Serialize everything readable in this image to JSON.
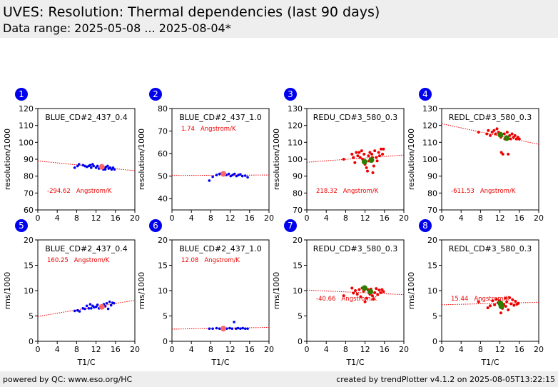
{
  "header": {
    "title": "UVES: Resolution: Thermal dependencies (last 90 days)",
    "subtitle": "Data range: 2025-05-08 ... 2025-08-04*"
  },
  "footer": {
    "left": "powered by QC: www.eso.org/HC",
    "right": "created by trendPlotter v4.1.2 on 2025-08-05T13:22:15"
  },
  "colors": {
    "badge": "#0000ee",
    "blue_points": "#0000ee",
    "red_points": "#ee0000",
    "mean_blue": "#ff6666",
    "mean_red": "#2e7d00",
    "fit": "#ee0000",
    "slope_text": "#ee0000"
  },
  "chart_data": [
    {
      "type": "scatter",
      "id": "1",
      "label": "BLUE_CD#2_437_0.4",
      "ylabel": "resolution/1000",
      "xlabel": "",
      "xlim": [
        0,
        20
      ],
      "ylim": [
        60,
        120
      ],
      "xticks": [
        0,
        4,
        8,
        12,
        16,
        20
      ],
      "yticks": [
        60,
        70,
        80,
        90,
        100,
        110,
        120
      ],
      "slope": "-294.62",
      "unit": "Angstrom/K",
      "point_color": "blue",
      "fit": [
        [
          0,
          89
        ],
        [
          20,
          83.2
        ]
      ],
      "mean": [
        13.2,
        85.5
      ],
      "points": [
        [
          7.6,
          85
        ],
        [
          8.2,
          86
        ],
        [
          8.5,
          87
        ],
        [
          9.3,
          86.5
        ],
        [
          9.7,
          86
        ],
        [
          10.1,
          85.5
        ],
        [
          10.5,
          86
        ],
        [
          10.8,
          86.5
        ],
        [
          11.0,
          85
        ],
        [
          11.3,
          87
        ],
        [
          11.5,
          86
        ],
        [
          12.0,
          85
        ],
        [
          12.3,
          86
        ],
        [
          12.6,
          84.5
        ],
        [
          13.0,
          86
        ],
        [
          13.2,
          85
        ],
        [
          13.5,
          84
        ],
        [
          13.7,
          85
        ],
        [
          13.9,
          84
        ],
        [
          14.1,
          85.5
        ],
        [
          14.4,
          86
        ],
        [
          14.6,
          84.5
        ],
        [
          14.9,
          85
        ],
        [
          15.2,
          84
        ],
        [
          15.5,
          85
        ],
        [
          15.8,
          84
        ]
      ]
    },
    {
      "type": "scatter",
      "id": "2",
      "label": "BLUE_CD#2_437_1.0",
      "ylabel": "resolution/1000",
      "xlabel": "",
      "xlim": [
        0,
        20
      ],
      "ylim": [
        35,
        80
      ],
      "xticks": [
        0,
        4,
        8,
        12,
        16,
        20
      ],
      "yticks": [
        40,
        50,
        60,
        70,
        80
      ],
      "slope": "1.74",
      "unit": "Angstrom/K",
      "point_color": "blue",
      "fit": [
        [
          0,
          50.3
        ],
        [
          20,
          50.5
        ]
      ],
      "mean": [
        10.6,
        51.0
      ],
      "points": [
        [
          7.7,
          48
        ],
        [
          8.4,
          49.7
        ],
        [
          9.2,
          50.5
        ],
        [
          9.8,
          51
        ],
        [
          10.2,
          51.2
        ],
        [
          10.5,
          50.8
        ],
        [
          10.8,
          51.5
        ],
        [
          11.2,
          50.5
        ],
        [
          11.7,
          51
        ],
        [
          12.1,
          50
        ],
        [
          12.5,
          50.5
        ],
        [
          12.9,
          51
        ],
        [
          13.3,
          50
        ],
        [
          13.7,
          50.5
        ],
        [
          14.1,
          50.8
        ],
        [
          14.5,
          50
        ],
        [
          15.1,
          50.2
        ],
        [
          15.6,
          49.5
        ]
      ]
    },
    {
      "type": "scatter",
      "id": "3",
      "label": "REDU_CD#3_580_0.3",
      "ylabel": "resolution/1000",
      "xlabel": "",
      "xlim": [
        0,
        20
      ],
      "ylim": [
        70,
        130
      ],
      "xticks": [
        0,
        4,
        8,
        12,
        16,
        20
      ],
      "yticks": [
        70,
        80,
        90,
        100,
        110,
        120,
        130
      ],
      "slope": "218.32",
      "unit": "Angstrom/K",
      "point_color": "red",
      "fit": [
        [
          0,
          98.2
        ],
        [
          20,
          102.5
        ]
      ],
      "mean": [
        [
          11.9,
          98.5
        ],
        [
          13.3,
          99.5
        ]
      ],
      "points": [
        [
          7.6,
          100
        ],
        [
          9.3,
          103
        ],
        [
          9.6,
          101
        ],
        [
          9.9,
          98
        ],
        [
          10.2,
          104
        ],
        [
          10.5,
          102
        ],
        [
          10.8,
          104
        ],
        [
          11.0,
          101
        ],
        [
          11.3,
          105
        ],
        [
          11.5,
          100
        ],
        [
          11.8,
          103
        ],
        [
          12.0,
          97
        ],
        [
          12.3,
          95
        ],
        [
          12.5,
          93
        ],
        [
          12.7,
          102
        ],
        [
          13.0,
          104
        ],
        [
          13.2,
          100
        ],
        [
          13.4,
          103
        ],
        [
          13.6,
          92
        ],
        [
          13.8,
          96
        ],
        [
          14.0,
          105
        ],
        [
          14.3,
          101
        ],
        [
          14.5,
          99
        ],
        [
          14.8,
          104
        ],
        [
          15.0,
          102
        ],
        [
          15.3,
          106
        ],
        [
          15.6,
          103
        ],
        [
          15.8,
          106
        ],
        [
          12.8,
          99
        ],
        [
          13.5,
          101
        ]
      ]
    },
    {
      "type": "scatter",
      "id": "4",
      "label": "REDL_CD#3_580_0.3",
      "ylabel": "resolution/1000",
      "xlabel": "",
      "xlim": [
        0,
        20
      ],
      "ylim": [
        70,
        130
      ],
      "xticks": [
        0,
        4,
        8,
        12,
        16,
        20
      ],
      "yticks": [
        70,
        80,
        90,
        100,
        110,
        120,
        130
      ],
      "slope": "-611.53",
      "unit": "Angstrom/K",
      "point_color": "red",
      "fit": [
        [
          0,
          121
        ],
        [
          20,
          108.8
        ]
      ],
      "mean": [
        [
          12.1,
          114.5
        ],
        [
          13.4,
          112.5
        ]
      ],
      "points": [
        [
          7.6,
          116
        ],
        [
          9.3,
          115
        ],
        [
          9.6,
          117
        ],
        [
          10.0,
          114
        ],
        [
          10.4,
          116
        ],
        [
          10.8,
          117
        ],
        [
          11.1,
          115
        ],
        [
          11.4,
          118
        ],
        [
          11.7,
          116
        ],
        [
          12.0,
          115
        ],
        [
          12.3,
          104
        ],
        [
          12.6,
          103
        ],
        [
          12.9,
          115
        ],
        [
          13.2,
          113
        ],
        [
          13.5,
          116
        ],
        [
          13.7,
          103
        ],
        [
          14.0,
          114
        ],
        [
          14.2,
          112
        ],
        [
          14.5,
          115
        ],
        [
          14.8,
          113
        ],
        [
          15.1,
          114
        ],
        [
          15.4,
          112
        ],
        [
          15.7,
          113
        ],
        [
          16.0,
          112
        ],
        [
          13.0,
          112
        ],
        [
          12.2,
          113
        ]
      ]
    },
    {
      "type": "scatter",
      "id": "5",
      "label": "BLUE_CD#2_437_0.4",
      "ylabel": "rms/1000",
      "xlabel": "T1/C",
      "xlim": [
        0,
        20
      ],
      "ylim": [
        0,
        20
      ],
      "xticks": [
        0,
        4,
        8,
        12,
        16,
        20
      ],
      "yticks": [
        0,
        5,
        10,
        15,
        20
      ],
      "slope": "160.25",
      "unit": "Angstrom/K",
      "point_color": "blue",
      "fit": [
        [
          0,
          4.9
        ],
        [
          20,
          8.1
        ]
      ],
      "mean": [
        13.2,
        6.8
      ],
      "points": [
        [
          7.6,
          6
        ],
        [
          8.2,
          6.1
        ],
        [
          8.6,
          5.9
        ],
        [
          9.3,
          6.5
        ],
        [
          9.7,
          6.4
        ],
        [
          10.1,
          7
        ],
        [
          10.5,
          6.5
        ],
        [
          10.8,
          7.3
        ],
        [
          11.0,
          6.5
        ],
        [
          11.3,
          7
        ],
        [
          11.6,
          6.7
        ],
        [
          12.0,
          6.8
        ],
        [
          12.3,
          7.2
        ],
        [
          12.6,
          6.5
        ],
        [
          13.0,
          7
        ],
        [
          13.3,
          6.6
        ],
        [
          13.6,
          7.3
        ],
        [
          13.9,
          6.9
        ],
        [
          14.2,
          7.5
        ],
        [
          14.5,
          6.4
        ],
        [
          14.8,
          7.8
        ],
        [
          15.1,
          7.1
        ],
        [
          15.4,
          7.6
        ],
        [
          15.7,
          7.5
        ]
      ]
    },
    {
      "type": "scatter",
      "id": "6",
      "label": "BLUE_CD#2_437_1.0",
      "ylabel": "rms/1000",
      "xlabel": "T1/C",
      "xlim": [
        0,
        20
      ],
      "ylim": [
        0,
        20
      ],
      "xticks": [
        0,
        4,
        8,
        12,
        16,
        20
      ],
      "yticks": [
        0,
        5,
        10,
        15,
        20
      ],
      "slope": "12.08",
      "unit": "Angstrom/K",
      "point_color": "blue",
      "fit": [
        [
          0,
          2.4
        ],
        [
          20,
          2.75
        ]
      ],
      "mean": [
        10.6,
        2.5
      ],
      "points": [
        [
          7.7,
          2.5
        ],
        [
          8.4,
          2.5
        ],
        [
          9.2,
          2.6
        ],
        [
          9.8,
          2.5
        ],
        [
          10.3,
          2.6
        ],
        [
          10.8,
          2.4
        ],
        [
          11.3,
          2.5
        ],
        [
          11.9,
          2.6
        ],
        [
          12.4,
          2.5
        ],
        [
          12.8,
          3.8
        ],
        [
          13.2,
          2.5
        ],
        [
          13.6,
          2.6
        ],
        [
          14.1,
          2.5
        ],
        [
          14.6,
          2.6
        ],
        [
          15.1,
          2.5
        ],
        [
          15.6,
          2.5
        ]
      ]
    },
    {
      "type": "scatter",
      "id": "7",
      "label": "REDU_CD#3_580_0.3",
      "ylabel": "rms/1000",
      "xlabel": "T1/C",
      "xlim": [
        0,
        20
      ],
      "ylim": [
        0,
        20
      ],
      "xticks": [
        0,
        4,
        8,
        12,
        16,
        20
      ],
      "yticks": [
        0,
        5,
        10,
        15,
        20
      ],
      "slope": "-40.66",
      "unit": "Angstrom/K",
      "point_color": "red",
      "fit": [
        [
          0,
          10.1
        ],
        [
          20,
          9.2
        ]
      ],
      "mean": [
        [
          11.9,
          10.5
        ],
        [
          13.1,
          9.8
        ]
      ],
      "points": [
        [
          7.6,
          9
        ],
        [
          9.3,
          10.5
        ],
        [
          9.6,
          9.5
        ],
        [
          10.0,
          10
        ],
        [
          10.4,
          9.3
        ],
        [
          10.8,
          10.2
        ],
        [
          11.1,
          8.8
        ],
        [
          11.4,
          10.5
        ],
        [
          11.7,
          9.9
        ],
        [
          12.0,
          7.8
        ],
        [
          12.3,
          8.5
        ],
        [
          12.6,
          10.2
        ],
        [
          12.9,
          9.5
        ],
        [
          13.2,
          10.3
        ],
        [
          13.5,
          9
        ],
        [
          13.7,
          8.3
        ],
        [
          14.0,
          9.6
        ],
        [
          14.3,
          10.4
        ],
        [
          14.6,
          9.2
        ],
        [
          14.9,
          10.1
        ],
        [
          15.2,
          9.6
        ],
        [
          15.5,
          10.2
        ],
        [
          15.8,
          9.8
        ],
        [
          13.0,
          9.3
        ]
      ]
    },
    {
      "type": "scatter",
      "id": "8",
      "label": "REDL_CD#3_580_0.3",
      "ylabel": "rms/1000",
      "xlabel": "T1/C",
      "xlim": [
        0,
        20
      ],
      "ylim": [
        0,
        20
      ],
      "xticks": [
        0,
        4,
        8,
        12,
        16,
        20
      ],
      "yticks": [
        0,
        5,
        10,
        15,
        20
      ],
      "slope": "15.44",
      "unit": "Angstrom/K",
      "point_color": "red",
      "fit": [
        [
          0,
          7.2
        ],
        [
          20,
          7.7
        ]
      ],
      "mean": [
        [
          12.1,
          7.5
        ],
        [
          12.3,
          6.9
        ]
      ],
      "points": [
        [
          7.6,
          7.8
        ],
        [
          9.5,
          6.6
        ],
        [
          10.0,
          7
        ],
        [
          10.5,
          8
        ],
        [
          10.9,
          7.2
        ],
        [
          11.3,
          8.3
        ],
        [
          11.6,
          7.6
        ],
        [
          11.9,
          8
        ],
        [
          12.2,
          5.6
        ],
        [
          12.5,
          6.5
        ],
        [
          12.8,
          7.3
        ],
        [
          13.1,
          8.5
        ],
        [
          13.4,
          7.8
        ],
        [
          13.7,
          6.2
        ],
        [
          14.0,
          8.6
        ],
        [
          14.3,
          7.4
        ],
        [
          14.6,
          8.2
        ],
        [
          14.9,
          7.1
        ],
        [
          15.2,
          7.9
        ],
        [
          15.5,
          7.3
        ],
        [
          15.8,
          7.5
        ],
        [
          13.2,
          6.9
        ]
      ]
    }
  ]
}
